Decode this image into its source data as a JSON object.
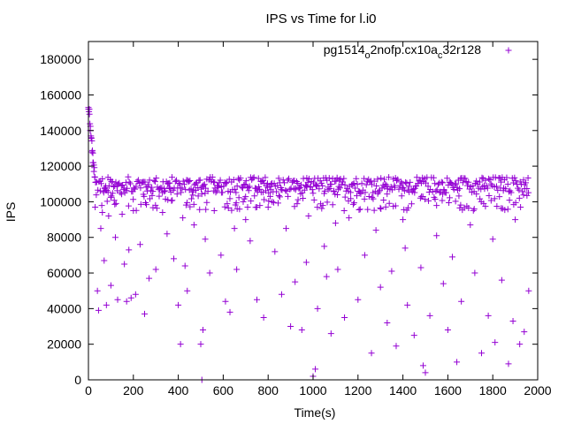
{
  "chart_data": {
    "type": "scatter",
    "title": "IPS vs Time for l.i0",
    "xlabel": "Time(s)",
    "ylabel": "IPS",
    "xlim": [
      0,
      2000
    ],
    "ylim": [
      0,
      190000
    ],
    "xticks": [
      0,
      200,
      400,
      600,
      800,
      1000,
      1200,
      1400,
      1600,
      1800,
      2000
    ],
    "yticks": [
      0,
      20000,
      40000,
      60000,
      80000,
      100000,
      120000,
      140000,
      160000,
      180000
    ],
    "legend_position": "top-right",
    "series": [
      {
        "name": "pg1514_o2nofp.cx10a_c32r128",
        "name_parts": {
          "base": "pg1514",
          "sub1": "o",
          "mid": "2nofp.cx10a",
          "sub2": "c",
          "end": "32r128"
        },
        "color": "#9400d3",
        "marker": "+",
        "x_range": [
          0,
          1960
        ],
        "sample_interval_s": 5,
        "startup_curve": [
          [
            0,
            153000
          ],
          [
            4,
            152000
          ],
          [
            8,
            140000
          ],
          [
            12,
            136000
          ],
          [
            16,
            128000
          ],
          [
            20,
            122000
          ],
          [
            24,
            117000
          ],
          [
            28,
            114000
          ],
          [
            32,
            111000
          ]
        ],
        "main_band": [
          105000,
          114000
        ],
        "x": [
          30,
          40,
          45,
          55,
          62,
          70,
          80,
          90,
          100,
          120,
          130,
          150,
          160,
          170,
          180,
          190,
          200,
          210,
          230,
          250,
          270,
          300,
          330,
          350,
          380,
          400,
          410,
          420,
          430,
          440,
          470,
          500,
          505,
          510,
          520,
          540,
          560,
          590,
          610,
          630,
          650,
          660,
          700,
          720,
          750,
          780,
          800,
          830,
          860,
          880,
          900,
          920,
          950,
          970,
          980,
          1000,
          1010,
          1020,
          1050,
          1060,
          1080,
          1100,
          1110,
          1140,
          1160,
          1200,
          1230,
          1260,
          1280,
          1300,
          1330,
          1350,
          1370,
          1400,
          1410,
          1420,
          1450,
          1480,
          1490,
          1500,
          1520,
          1550,
          1580,
          1600,
          1620,
          1640,
          1660,
          1700,
          1720,
          1750,
          1780,
          1800,
          1810,
          1840,
          1870,
          1890,
          1900,
          1920,
          1940,
          1960
        ],
        "y": [
          97000,
          50000,
          39000,
          85000,
          94000,
          67000,
          42000,
          92000,
          53000,
          80000,
          45000,
          93000,
          65000,
          44000,
          73000,
          46000,
          95000,
          48000,
          76000,
          37000,
          57000,
          62000,
          94000,
          82000,
          68000,
          42000,
          20000,
          91000,
          64000,
          50000,
          87000,
          20000,
          0,
          28000,
          79000,
          60000,
          95000,
          70000,
          44000,
          38000,
          85000,
          62000,
          90000,
          78000,
          45000,
          35000,
          97000,
          72000,
          48000,
          85000,
          30000,
          55000,
          28000,
          66000,
          92000,
          2000,
          6000,
          40000,
          75000,
          58000,
          26000,
          88000,
          62000,
          35000,
          91000,
          45000,
          70000,
          15000,
          84000,
          52000,
          32000,
          61000,
          19000,
          90000,
          74000,
          42000,
          25000,
          63000,
          8000,
          4000,
          36000,
          81000,
          54000,
          28000,
          69000,
          10000,
          44000,
          87000,
          60000,
          15000,
          36000,
          79000,
          21000,
          56000,
          9000,
          33000,
          90000,
          20000,
          27000,
          50000
        ]
      }
    ]
  }
}
